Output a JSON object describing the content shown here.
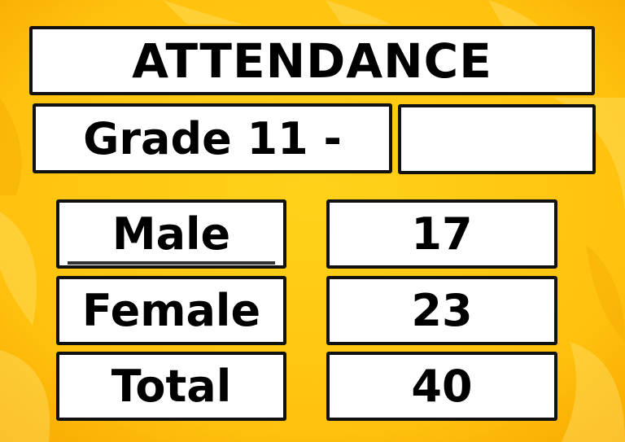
{
  "title": "ATTENDANCE",
  "grade": "Grade 11 -",
  "rows": [
    {
      "label": "Male",
      "value": 17
    },
    {
      "label": "Female",
      "value": 23
    },
    {
      "label": "Total",
      "value": 40
    }
  ]
}
